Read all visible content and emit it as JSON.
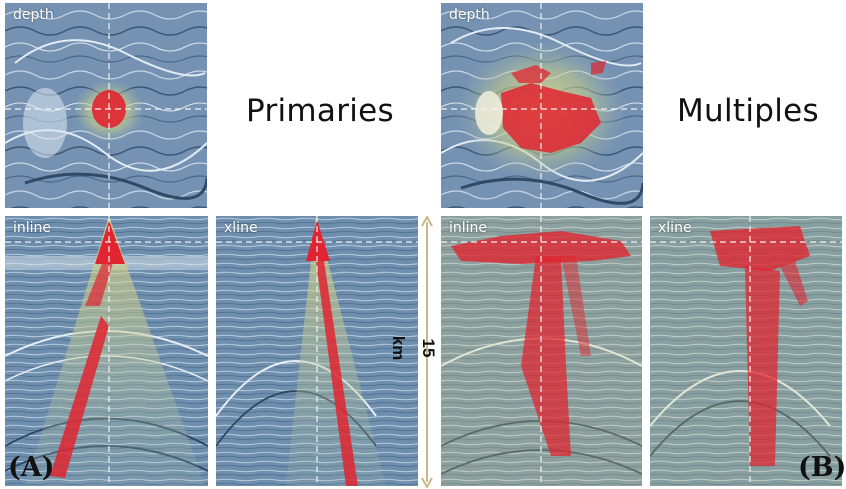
{
  "labels": {
    "depth": "depth",
    "inline": "inline",
    "xline": "xline"
  },
  "headings": {
    "primaries": "Primaries",
    "multiples": "Multiples"
  },
  "corner_labels": {
    "a": "(A)",
    "b": "(B)"
  },
  "scale_bar": {
    "text": "15 km"
  },
  "colors": {
    "background_blue": "#6f8fb0",
    "highlight_red": "#e02530",
    "halo_yellow": "#d8d27a",
    "scale_bar": "#c8b98a"
  }
}
